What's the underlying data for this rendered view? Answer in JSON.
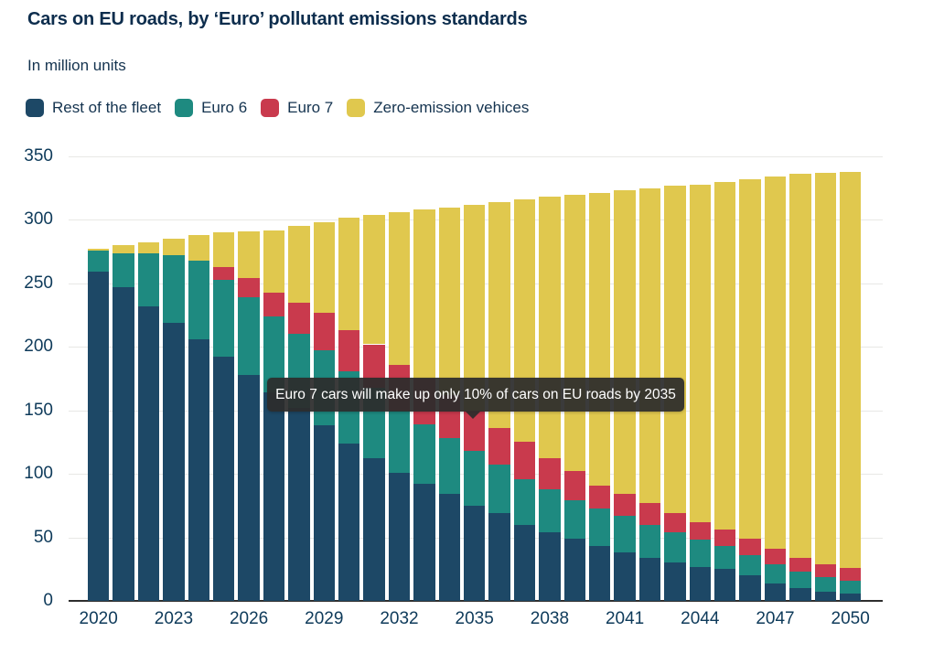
{
  "page": {
    "background": "#ffffff"
  },
  "chart_data": {
    "type": "bar",
    "stacked": true,
    "title": "Cars on EU roads, by ‘Euro’ pollutant emissions standards",
    "subtitle": "In million units",
    "categories": [
      2020,
      2021,
      2022,
      2023,
      2024,
      2025,
      2026,
      2027,
      2028,
      2029,
      2030,
      2031,
      2032,
      2033,
      2034,
      2035,
      2036,
      2037,
      2038,
      2039,
      2040,
      2041,
      2042,
      2043,
      2044,
      2045,
      2046,
      2047,
      2048,
      2049,
      2050
    ],
    "series": [
      {
        "name": "Rest of the fleet",
        "color": "#1d4866",
        "values": [
          259,
          247,
          232,
          219,
          206,
          192,
          178,
          164,
          152,
          138,
          124,
          112,
          101,
          92,
          84,
          75,
          69,
          60,
          54,
          49,
          43,
          38,
          34,
          30,
          27,
          25,
          20,
          14,
          10,
          7,
          6
        ]
      },
      {
        "name": "Euro 6",
        "color": "#1e8a80",
        "values": [
          17,
          27,
          42,
          53,
          62,
          61,
          61,
          60,
          58,
          59,
          57,
          56,
          49,
          47,
          44,
          43,
          38,
          36,
          34,
          30,
          30,
          29,
          26,
          24,
          21,
          18,
          16,
          15,
          13,
          12,
          10
        ]
      },
      {
        "name": "Euro 7",
        "color": "#c93a4d",
        "values": [
          0,
          0,
          0,
          0,
          0,
          10,
          15,
          19,
          25,
          30,
          32,
          34,
          36,
          36,
          34,
          32,
          29,
          29,
          24,
          23,
          18,
          17,
          17,
          15,
          14,
          13,
          13,
          12,
          11,
          10,
          10
        ]
      },
      {
        "name": "Zero-emission vehices",
        "color": "#e0c84e",
        "values": [
          1,
          6,
          8,
          13,
          20,
          27,
          37,
          49,
          60,
          71,
          89,
          102,
          120,
          133,
          148,
          162,
          178,
          191,
          206,
          218,
          230,
          239,
          248,
          258,
          266,
          274,
          283,
          293,
          302,
          308,
          312
        ]
      }
    ],
    "ylim": [
      0,
      350
    ],
    "yticks": [
      0,
      50,
      100,
      150,
      200,
      250,
      300,
      350
    ],
    "xticks": [
      2020,
      2023,
      2026,
      2029,
      2032,
      2035,
      2038,
      2041,
      2044,
      2047,
      2050
    ],
    "grid": "horizontal",
    "legend_position": "top-left",
    "annotation": {
      "text": "Euro 7 cars will make up only 10% of cars on EU roads by 2035",
      "target_year": 2035,
      "background": "#2c2c2c",
      "text_color": "#ffffff"
    }
  }
}
